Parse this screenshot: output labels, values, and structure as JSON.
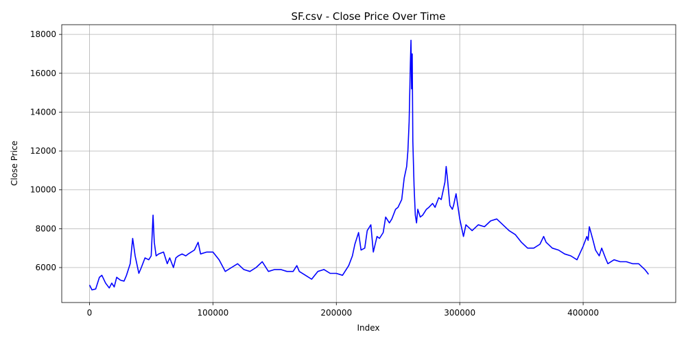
{
  "chart_data": {
    "type": "line",
    "title": "SF.csv - Close Price Over Time",
    "xlabel": "Index",
    "ylabel": "Close Price",
    "xlim": [
      -22500,
      475000
    ],
    "ylim": [
      4200,
      18500
    ],
    "xticks": [
      0,
      100000,
      200000,
      300000,
      400000
    ],
    "xtick_labels": [
      "0",
      "100000",
      "200000",
      "300000",
      "400000"
    ],
    "yticks": [
      6000,
      8000,
      10000,
      12000,
      14000,
      16000,
      18000
    ],
    "ytick_labels": [
      "6000",
      "8000",
      "10000",
      "12000",
      "14000",
      "16000",
      "18000"
    ],
    "grid": true,
    "series": [
      {
        "color": "#0000ff",
        "x": [
          0,
          2000,
          5000,
          8000,
          10000,
          13000,
          16000,
          18000,
          20000,
          22000,
          25000,
          28000,
          30000,
          33000,
          35000,
          37000,
          40000,
          42000,
          45000,
          48000,
          50000,
          51500,
          52500,
          54000,
          56000,
          60000,
          63000,
          65000,
          68000,
          70000,
          72000,
          75000,
          78000,
          80000,
          85000,
          88000,
          90000,
          95000,
          100000,
          105000,
          110000,
          115000,
          120000,
          125000,
          130000,
          135000,
          140000,
          145000,
          150000,
          155000,
          160000,
          165000,
          168000,
          170000,
          175000,
          180000,
          185000,
          190000,
          195000,
          200000,
          205000,
          210000,
          213000,
          215000,
          218000,
          220000,
          223000,
          225000,
          228000,
          230000,
          233000,
          235000,
          238000,
          240000,
          243000,
          245000,
          248000,
          250000,
          253000,
          255000,
          257000,
          258000,
          259000,
          260000,
          260500,
          261000,
          261500,
          262000,
          263000,
          264000,
          265000,
          266000,
          268000,
          270000,
          273000,
          275000,
          278000,
          280000,
          283000,
          285000,
          287000,
          288000,
          289000,
          290000,
          292000,
          294000,
          295000,
          297000,
          300000,
          303000,
          305000,
          310000,
          315000,
          320000,
          325000,
          330000,
          335000,
          340000,
          345000,
          350000,
          355000,
          360000,
          365000,
          368000,
          370000,
          375000,
          380000,
          385000,
          390000,
          395000,
          400000,
          403000,
          404000,
          405000,
          408000,
          410000,
          413000,
          415000,
          418000,
          420000,
          425000,
          430000,
          435000,
          440000,
          445000,
          450000,
          453000
        ],
        "y": [
          5100,
          4850,
          4900,
          5500,
          5600,
          5200,
          4950,
          5200,
          5000,
          5500,
          5350,
          5300,
          5600,
          6200,
          7500,
          6600,
          5700,
          6000,
          6500,
          6400,
          6600,
          8700,
          7300,
          6600,
          6700,
          6800,
          6200,
          6500,
          6000,
          6500,
          6600,
          6700,
          6600,
          6700,
          6900,
          7300,
          6700,
          6800,
          6800,
          6400,
          5800,
          6000,
          6200,
          5900,
          5800,
          6000,
          6300,
          5800,
          5900,
          5900,
          5800,
          5800,
          6100,
          5800,
          5600,
          5400,
          5800,
          5900,
          5700,
          5700,
          5600,
          6100,
          6600,
          7200,
          7800,
          6900,
          7000,
          7900,
          8200,
          6800,
          7600,
          7500,
          7800,
          8600,
          8300,
          8500,
          9000,
          9100,
          9500,
          10600,
          11200,
          12000,
          13500,
          16500,
          17700,
          15200,
          17000,
          12500,
          10200,
          8700,
          8300,
          9000,
          8600,
          8700,
          9000,
          9100,
          9300,
          9100,
          9600,
          9500,
          10100,
          10400,
          11200,
          10600,
          9200,
          9000,
          9200,
          9800,
          8500,
          7600,
          8200,
          7900,
          8200,
          8100,
          8400,
          8500,
          8200,
          7900,
          7700,
          7300,
          7000,
          7000,
          7200,
          7600,
          7300,
          7000,
          6900,
          6700,
          6600,
          6400,
          7100,
          7600,
          7400,
          8100,
          7400,
          6900,
          6600,
          7000,
          6500,
          6200,
          6400,
          6300,
          6300,
          6200,
          6200,
          5900,
          5650
        ]
      }
    ]
  }
}
